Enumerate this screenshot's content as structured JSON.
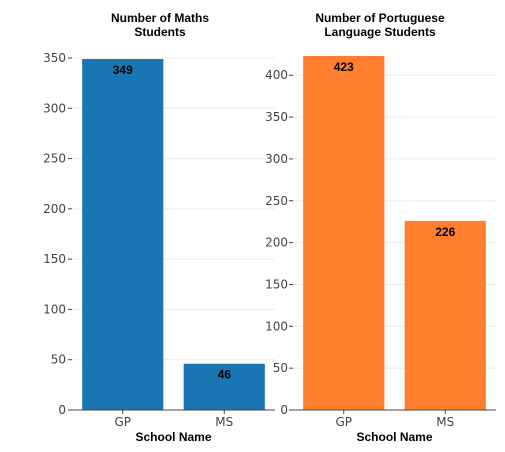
{
  "chart_data": [
    {
      "type": "bar",
      "title_lines": [
        "Number of Maths",
        "Students"
      ],
      "xlabel": "School Name",
      "ylabel": "",
      "categories": [
        "GP",
        "MS"
      ],
      "values": [
        349,
        46
      ],
      "data_labels": [
        "349",
        "46"
      ],
      "yticks": [
        0,
        50,
        100,
        150,
        200,
        250,
        300,
        350
      ],
      "ylim": [
        0,
        352
      ],
      "color": "#1a76b3",
      "grid": true
    },
    {
      "type": "bar",
      "title_lines": [
        "Number of Portuguese",
        "Language Students"
      ],
      "xlabel": "School Name",
      "ylabel": "",
      "categories": [
        "GP",
        "MS"
      ],
      "values": [
        423,
        226
      ],
      "data_labels": [
        "423",
        "226"
      ],
      "yticks": [
        0,
        50,
        100,
        150,
        200,
        250,
        300,
        350,
        400
      ],
      "ylim": [
        0,
        423
      ],
      "color": "#ff7f2e",
      "grid": true
    }
  ]
}
